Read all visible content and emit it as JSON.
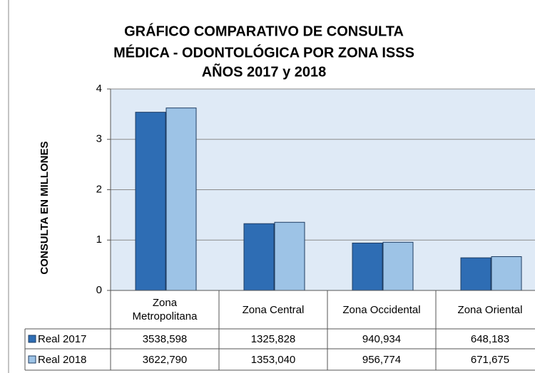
{
  "chart_data": {
    "type": "bar",
    "title": [
      "GRÁFICO COMPARATIVO DE CONSULTA",
      "MÉDICA - ODONTOLÓGICA POR ZONA ISSS",
      "AÑOS 2017 y 2018"
    ],
    "y_label": "CONSULTA EN MILLONES",
    "categories": [
      "Zona Metropolitana",
      "Zona Central",
      "Zona Occidental",
      "Zona Oriental"
    ],
    "series": [
      {
        "name": "Real 2017",
        "color": "#2e6db4",
        "values": [
          3.538598,
          1.325828,
          0.940934,
          0.648183
        ],
        "value_labels": [
          "3538,598",
          "1325,828",
          "940,934",
          "648,183"
        ]
      },
      {
        "name": "Real 2018",
        "color": "#9dc3e6",
        "values": [
          3.62279,
          1.35304,
          0.956774,
          0.671675
        ],
        "value_labels": [
          "3622,790",
          "1353,040",
          "956,774",
          "671,675"
        ]
      }
    ],
    "ylim": [
      0,
      4
    ],
    "yticks": [
      0,
      1,
      2,
      3,
      4
    ],
    "grid": true
  }
}
